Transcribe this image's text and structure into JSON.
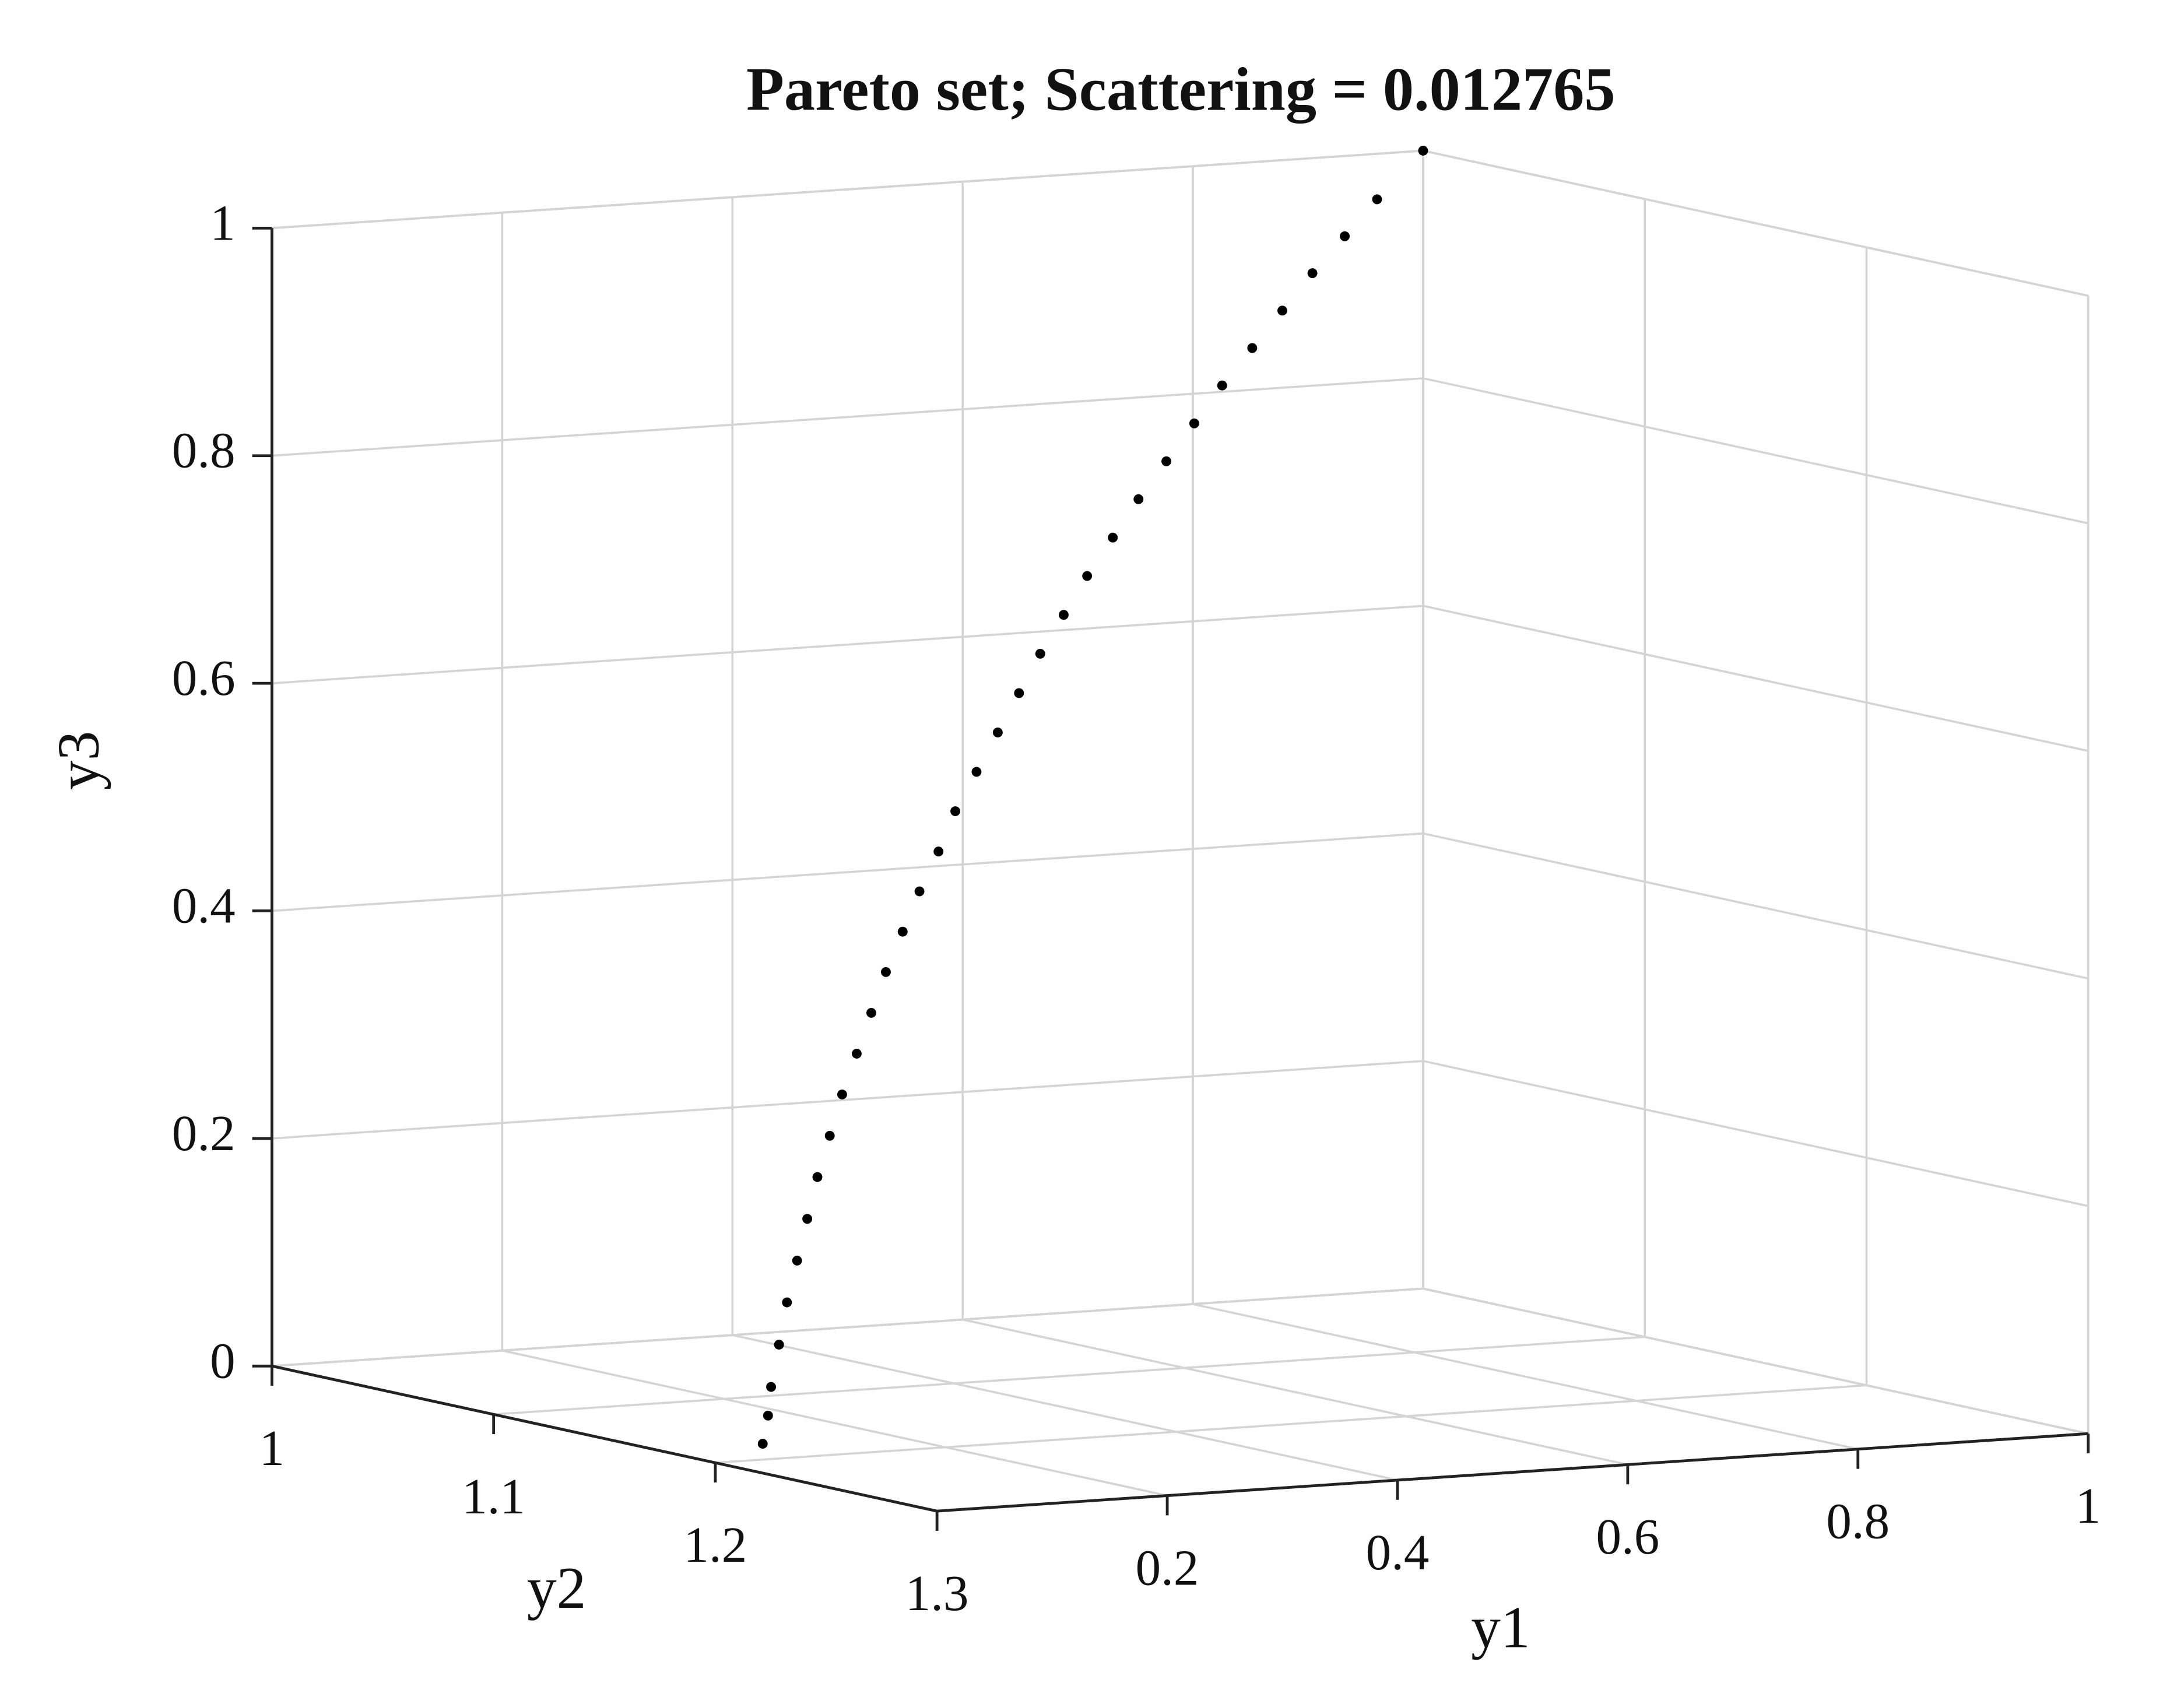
{
  "chart_data": {
    "type": "scatter3d",
    "title": "Pareto set; Scattering = 0.012765",
    "xlabel": "y1",
    "ylabel": "y2",
    "zlabel": "y3",
    "xlim": [
      0,
      1
    ],
    "ylim": [
      1,
      1.3
    ],
    "zlim": [
      0,
      1
    ],
    "xticks": [
      0.2,
      0.4,
      0.6,
      0.8,
      1
    ],
    "yticks": [
      1,
      1.1,
      1.2,
      1.3
    ],
    "zticks": [
      0,
      0.2,
      0.4,
      0.6,
      0.8,
      1
    ],
    "grid": true,
    "color": "#000000",
    "x": [
      0.02,
      0.04,
      0.06,
      0.09,
      0.12,
      0.15,
      0.18,
      0.21,
      0.24,
      0.27,
      0.3,
      0.33,
      0.36,
      0.39,
      0.42,
      0.45,
      0.48,
      0.51,
      0.54,
      0.57,
      0.6,
      0.63,
      0.66,
      0.69,
      0.72,
      0.75,
      0.78,
      0.81,
      0.84,
      0.87,
      0.9,
      0.93,
      0.96,
      1
    ],
    "y": [
      1.211,
      1.203,
      1.194,
      1.182,
      1.17,
      1.159,
      1.148,
      1.137,
      1.127,
      1.117,
      1.108,
      1.099,
      1.09,
      1.082,
      1.074,
      1.067,
      1.059,
      1.053,
      1.047,
      1.041,
      1.035,
      1.03,
      1.025,
      1.021,
      1.017,
      1.014,
      1.011,
      1.008,
      1.006,
      1.004,
      1.002,
      1.001,
      1,
      1
    ],
    "z": [
      0.02,
      0.04,
      0.06,
      0.09,
      0.12,
      0.15,
      0.18,
      0.21,
      0.24,
      0.27,
      0.3,
      0.33,
      0.36,
      0.39,
      0.42,
      0.45,
      0.48,
      0.51,
      0.54,
      0.57,
      0.6,
      0.63,
      0.66,
      0.69,
      0.72,
      0.75,
      0.78,
      0.81,
      0.84,
      0.87,
      0.9,
      0.93,
      0.96,
      1
    ]
  }
}
